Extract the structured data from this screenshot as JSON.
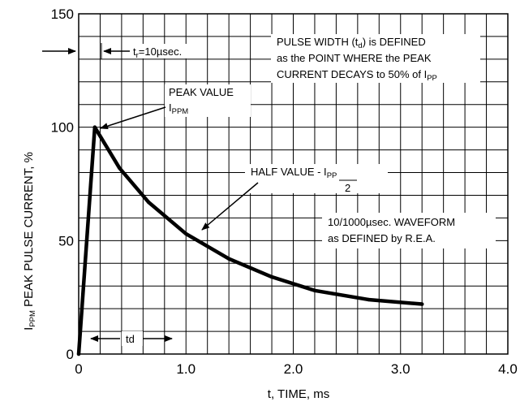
{
  "chart_data": {
    "type": "line",
    "xlabel": "t, TIME, ms",
    "ylabel": {
      "prefix": "I",
      "sub": "PPM",
      "rest": " PEAK PULSE CURRENT, %"
    },
    "xlim": [
      0,
      4.0
    ],
    "ylim": [
      0,
      150
    ],
    "x_ticks": [
      0,
      1.0,
      2.0,
      3.0,
      4.0
    ],
    "x_tick_labels": [
      "0",
      "1.0",
      "2.0",
      "3.0",
      "4.0"
    ],
    "y_ticks": [
      0,
      50,
      100,
      150
    ],
    "y_tick_labels": [
      "0",
      "50",
      "100",
      "150"
    ],
    "grid": true,
    "series": [
      {
        "x": [
          0,
          0.15,
          0.38,
          0.65,
          1.0,
          1.4,
          1.8,
          2.2,
          2.7,
          3.2
        ],
        "y": [
          0,
          100,
          82,
          67,
          53,
          42,
          34,
          28,
          24,
          22
        ]
      }
    ],
    "annotations": {
      "tr": {
        "prefix": "t",
        "sub": "r",
        "rest": "=10µsec."
      },
      "pulse_width": {
        "line1_prefix": "PULSE WIDTH (t",
        "line1_sub": "d",
        "line1_rest": ") is DEFINED",
        "line2": "as the POINT WHERE the PEAK",
        "line3_prefix": "CURRENT DECAYS to 50% of I",
        "line3_sub": "PP"
      },
      "peak_value": {
        "line1": "PEAK VALUE",
        "line2_prefix": "I",
        "line2_sub": "PPM"
      },
      "half_value": {
        "prefix": "HALF VALUE - I",
        "sub": "PP",
        "denominator": "2"
      },
      "waveform": {
        "line1": "10/1000µsec. WAVEFORM",
        "line2": "as DEFINED by R.E.A."
      },
      "td": "td"
    }
  }
}
